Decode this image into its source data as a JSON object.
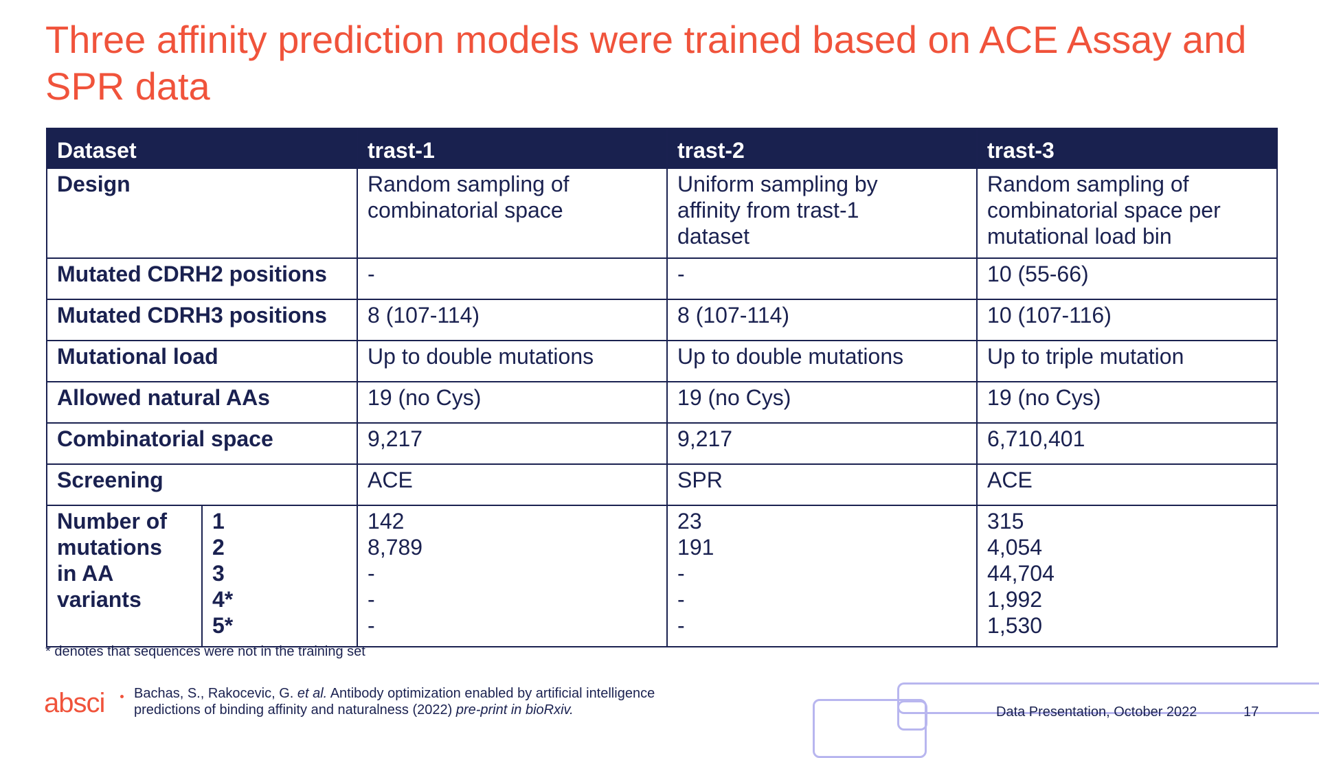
{
  "title": "Three affinity prediction models were trained based on ACE Assay and SPR data",
  "table": {
    "headers": [
      "Dataset",
      "trast-1",
      "trast-2",
      "trast-3"
    ],
    "rows": [
      {
        "label": "Design",
        "cells": [
          [
            "Random sampling of",
            "combinatorial space"
          ],
          [
            "Uniform sampling by",
            "affinity from trast-1",
            "dataset"
          ],
          [
            "Random sampling of",
            "combinatorial space per",
            "mutational load bin"
          ]
        ]
      },
      {
        "label": "Mutated CDRH2 positions",
        "cells": [
          [
            "-"
          ],
          [
            "-"
          ],
          [
            "10 (55-66)"
          ]
        ]
      },
      {
        "label": "Mutated CDRH3 positions",
        "cells": [
          [
            "8 (107-114)"
          ],
          [
            "8 (107-114)"
          ],
          [
            "10 (107-116)"
          ]
        ]
      },
      {
        "label": "Mutational load",
        "cells": [
          [
            "Up to double mutations"
          ],
          [
            "Up to double mutations"
          ],
          [
            "Up to triple mutation"
          ]
        ]
      },
      {
        "label": "Allowed natural AAs",
        "cells": [
          [
            "19 (no Cys)"
          ],
          [
            "19 (no Cys)"
          ],
          [
            "19 (no Cys)"
          ]
        ]
      },
      {
        "label": "Combinatorial space",
        "cells": [
          [
            "9,217"
          ],
          [
            "9,217"
          ],
          [
            "6,710,401"
          ]
        ]
      },
      {
        "label": "Screening",
        "cells": [
          [
            "ACE"
          ],
          [
            "SPR"
          ],
          [
            "ACE"
          ]
        ]
      }
    ],
    "mutations": {
      "label_lines": [
        "Number of",
        "mutations",
        "in AA",
        "variants"
      ],
      "counts": [
        "1",
        "2",
        "3",
        "4*",
        "5*"
      ],
      "trast1": [
        "142",
        "8,789",
        "-",
        "-",
        "-"
      ],
      "trast2": [
        "23",
        "191",
        "-",
        "-",
        "-"
      ],
      "trast3": [
        "315",
        "4,054",
        "44,704",
        "1,992",
        "1,530"
      ]
    }
  },
  "footnote": "* denotes that sequences were not in the training set",
  "footer": {
    "logo": "absci",
    "citation_line1_a": "Bachas, S., Rakocevic, G. ",
    "citation_line1_b": "et al.",
    "citation_line1_c": " Antibody optimization enabled by artificial intelligence",
    "citation_line2_a": "predictions of binding affinity and naturalness (2022) ",
    "citation_line2_b": "pre-print in bioRxiv.",
    "presentation": "Data Presentation, October 2022",
    "page": "17"
  },
  "colors": {
    "title": "#f0533b",
    "header_bg": "#19214f",
    "text": "#1a2150",
    "decoration": "#b8b6ef"
  }
}
